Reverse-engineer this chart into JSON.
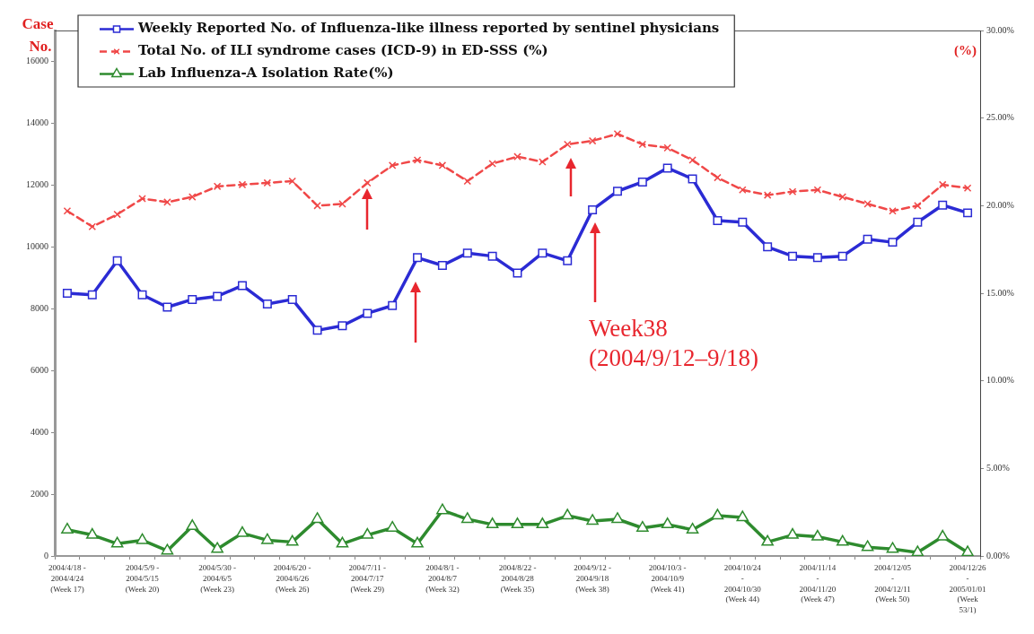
{
  "chart_data": {
    "type": "line",
    "ylabel": "Case No.",
    "y2label": "(%)",
    "categories": [
      "2004/4/18 -\n2004/4/24\n(Week 17)",
      null,
      null,
      "2004/5/9 -\n2004/5/15\n(Week 20)",
      null,
      null,
      "2004/5/30 -\n2004/6/5\n(Week 23)",
      null,
      null,
      "2004/6/20 -\n2004/6/26\n(Week 26)",
      null,
      null,
      "2004/7/11 -\n2004/7/17\n(Week 29)",
      null,
      null,
      "2004/8/1 -\n2004/8/7\n(Week 32)",
      null,
      null,
      "2004/8/22 -\n2004/8/28\n(Week 35)",
      null,
      null,
      "2004/9/12 -\n2004/9/18\n(Week 38)",
      null,
      null,
      "2004/10/3 -\n2004/10/9\n(Week 41)",
      null,
      null,
      "2004/10/24\n-\n2004/10/30\n(Week 44)",
      null,
      null,
      "2004/11/14\n-\n2004/11/20\n(Week 47)",
      null,
      null,
      "2004/12/05\n-\n2004/12/11\n(Week 50)",
      null,
      null,
      "2004/12/26\n-\n2005/01/01\n(Week\n53/1)"
    ],
    "ylim": [
      0,
      17000
    ],
    "yticks": [
      0,
      2000,
      4000,
      6000,
      8000,
      10000,
      12000,
      14000,
      16000
    ],
    "y2lim": [
      0,
      30
    ],
    "y2ticks": [
      {
        "value": 0,
        "label": "0.00%"
      },
      {
        "value": 5,
        "label": "5.00%"
      },
      {
        "value": 10,
        "label": "10.00%"
      },
      {
        "value": 15,
        "label": "15.00%"
      },
      {
        "value": 20,
        "label": "20.00%"
      },
      {
        "value": 25,
        "label": "25.00%"
      },
      {
        "value": 30,
        "label": "30.00%"
      }
    ],
    "legend": "top left",
    "annotations": [
      "Week38\n(2004/9/12–9/18)"
    ],
    "series": [
      {
        "name": "Weekly Reported No. of Influenza-like illness reported by sentinel physicians",
        "color": "#2b2bd4",
        "marker": "square",
        "line_style": "solid",
        "values": [
          8500,
          8450,
          9550,
          8450,
          8050,
          8300,
          8400,
          8750,
          8150,
          8300,
          7300,
          7450,
          7850,
          8100,
          9650,
          9400,
          9800,
          9700,
          9150,
          9800,
          9550,
          11200,
          11800,
          12100,
          12550,
          12200,
          10850,
          10800,
          10000,
          9700,
          9650,
          9700,
          10250,
          10150,
          10800,
          11350,
          11100
        ]
      },
      {
        "name": "Total No. of ILI syndrome cases (ICD-9) in ED-SSS (%)",
        "color": "#f04848",
        "marker": "cross",
        "line_style": "dashed",
        "axis": "y2",
        "values": [
          19.7,
          18.8,
          19.5,
          20.4,
          20.2,
          20.5,
          21.1,
          21.2,
          21.3,
          21.4,
          20.0,
          20.1,
          21.3,
          22.3,
          22.6,
          22.3,
          21.4,
          22.4,
          22.8,
          22.5,
          23.5,
          23.7,
          24.1,
          23.5,
          23.3,
          22.6,
          21.6,
          20.9,
          20.6,
          20.8,
          20.9,
          20.5,
          20.1,
          19.7,
          20.0,
          21.2,
          21.0
        ]
      },
      {
        "name": "Lab Influenza-A Isolation Rate(%)",
        "color": "#2e8b2e",
        "marker": "triangle",
        "line_style": "solid",
        "axis": "y2",
        "values": [
          1.5,
          1.2,
          0.7,
          0.9,
          0.3,
          1.7,
          0.4,
          1.3,
          0.9,
          0.8,
          2.1,
          0.7,
          1.2,
          1.6,
          0.7,
          2.6,
          2.1,
          1.8,
          1.8,
          1.8,
          2.3,
          2.0,
          2.1,
          1.6,
          1.8,
          1.5,
          2.3,
          2.2,
          0.8,
          1.2,
          1.1,
          0.8,
          0.5,
          0.4,
          0.2,
          1.1,
          0.2
        ]
      }
    ]
  }
}
